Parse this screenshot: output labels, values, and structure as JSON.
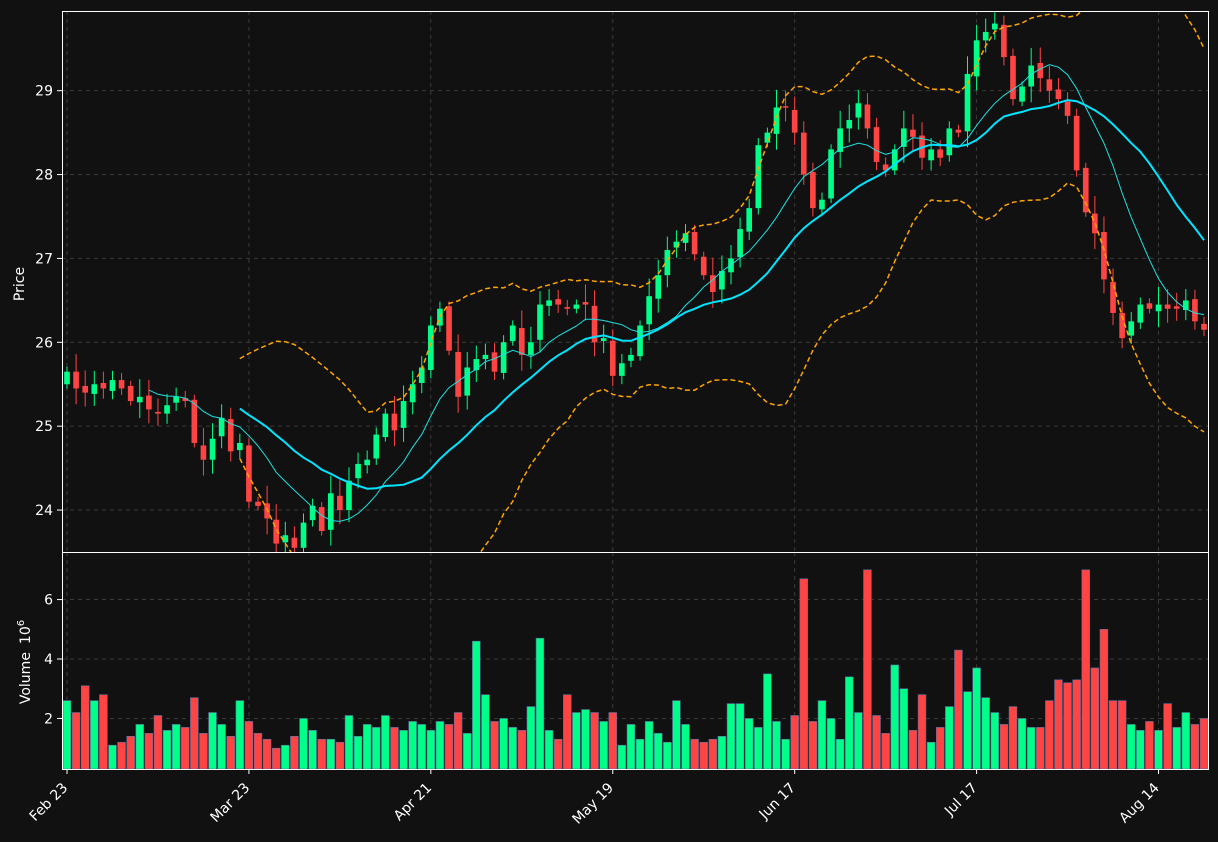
{
  "chart_data": {
    "type": "candlestick",
    "colors": {
      "up": "#00ff88",
      "down": "#ff4444",
      "sma_fast": "#1ee0e0",
      "sma_slow": "#00e5ff",
      "band": "#ffa500",
      "background": "#111111",
      "grid": "#3a3a3a",
      "text": "#ffffff"
    },
    "price_panel": {
      "ylabel": "Price",
      "yticks": [
        24,
        25,
        26,
        27,
        28,
        29
      ],
      "ylim": [
        23.5,
        29.95
      ],
      "grid": true
    },
    "volume_panel": {
      "ylabel": "Volume",
      "unit_base": "10",
      "unit_exp": "6",
      "yticks": [
        2,
        4,
        6
      ],
      "ylim": [
        0.3,
        7.6
      ],
      "grid": true
    },
    "x_ticks": [
      {
        "index": 0,
        "label": "Feb 23"
      },
      {
        "index": 20,
        "label": "Mar 23"
      },
      {
        "index": 40,
        "label": "Apr 21"
      },
      {
        "index": 60,
        "label": "May 19"
      },
      {
        "index": 80,
        "label": "Jun 17"
      },
      {
        "index": 100,
        "label": "Jul 17"
      },
      {
        "index": 120,
        "label": "Aug 14"
      }
    ],
    "n_bars": 126,
    "close": [
      25.65,
      25.45,
      25.4,
      25.5,
      25.45,
      25.55,
      25.45,
      25.3,
      25.35,
      25.2,
      25.15,
      25.25,
      25.35,
      25.3,
      24.8,
      24.6,
      24.85,
      25.1,
      24.7,
      24.8,
      24.1,
      24.05,
      23.9,
      23.6,
      23.7,
      23.55,
      23.85,
      24.05,
      23.75,
      24.2,
      24.0,
      24.35,
      24.55,
      24.6,
      24.9,
      25.15,
      24.95,
      25.3,
      25.5,
      25.7,
      26.2,
      26.4,
      25.9,
      25.35,
      25.7,
      25.8,
      25.85,
      25.65,
      26.0,
      26.2,
      25.85,
      26.0,
      26.45,
      26.5,
      26.45,
      26.4,
      26.45,
      26.45,
      26.0,
      26.05,
      25.6,
      25.75,
      25.85,
      26.2,
      26.55,
      26.8,
      27.1,
      27.2,
      27.3,
      27.05,
      26.8,
      26.6,
      26.85,
      27.0,
      27.35,
      27.6,
      28.35,
      28.5,
      28.8,
      28.8,
      28.5,
      28.0,
      27.6,
      27.7,
      28.3,
      28.55,
      28.65,
      28.85,
      28.55,
      28.15,
      28.05,
      28.3,
      28.55,
      28.45,
      28.2,
      28.3,
      28.2,
      28.55,
      28.5,
      29.2,
      29.6,
      29.7,
      29.8,
      29.4,
      28.9,
      29.05,
      29.3,
      29.15,
      29.0,
      28.9,
      28.7,
      28.05,
      27.55,
      27.3,
      26.75,
      26.35,
      26.05,
      26.25,
      26.45,
      26.4,
      26.45,
      26.4,
      26.4,
      26.5,
      26.25,
      26.15
    ],
    "volume": [
      2.6,
      2.2,
      3.1,
      2.6,
      2.8,
      1.1,
      1.2,
      1.4,
      1.8,
      1.5,
      2.1,
      1.6,
      1.8,
      1.7,
      2.7,
      1.5,
      2.2,
      1.8,
      1.4,
      2.6,
      1.9,
      1.5,
      1.3,
      1.0,
      1.1,
      1.4,
      2.0,
      1.6,
      1.3,
      1.3,
      1.2,
      2.1,
      1.4,
      1.8,
      1.7,
      2.1,
      1.7,
      1.6,
      1.9,
      1.8,
      1.6,
      1.9,
      1.8,
      2.2,
      1.5,
      4.6,
      2.8,
      1.9,
      2.0,
      1.7,
      1.6,
      2.4,
      4.7,
      1.6,
      1.3,
      2.8,
      2.2,
      2.3,
      2.2,
      1.9,
      2.2,
      1.1,
      1.8,
      1.3,
      1.9,
      1.5,
      1.2,
      2.6,
      1.8,
      1.3,
      1.2,
      1.3,
      1.4,
      2.5,
      2.5,
      2.0,
      1.7,
      3.5,
      1.9,
      1.3,
      2.1,
      6.7,
      1.9,
      2.6,
      2.0,
      1.3,
      3.4,
      2.2,
      7.0,
      2.1,
      1.5,
      3.8,
      3.0,
      1.6,
      2.8,
      1.2,
      1.7,
      2.4,
      4.3,
      2.9,
      3.7,
      2.7,
      2.2,
      1.8,
      2.4,
      2.0,
      1.7,
      1.7,
      2.6,
      3.3,
      3.2,
      3.3,
      7.0,
      3.7,
      5.0,
      2.6,
      2.6,
      1.8,
      1.6,
      1.9,
      1.6,
      2.5,
      1.7,
      2.2,
      1.8,
      2.0
    ]
  }
}
